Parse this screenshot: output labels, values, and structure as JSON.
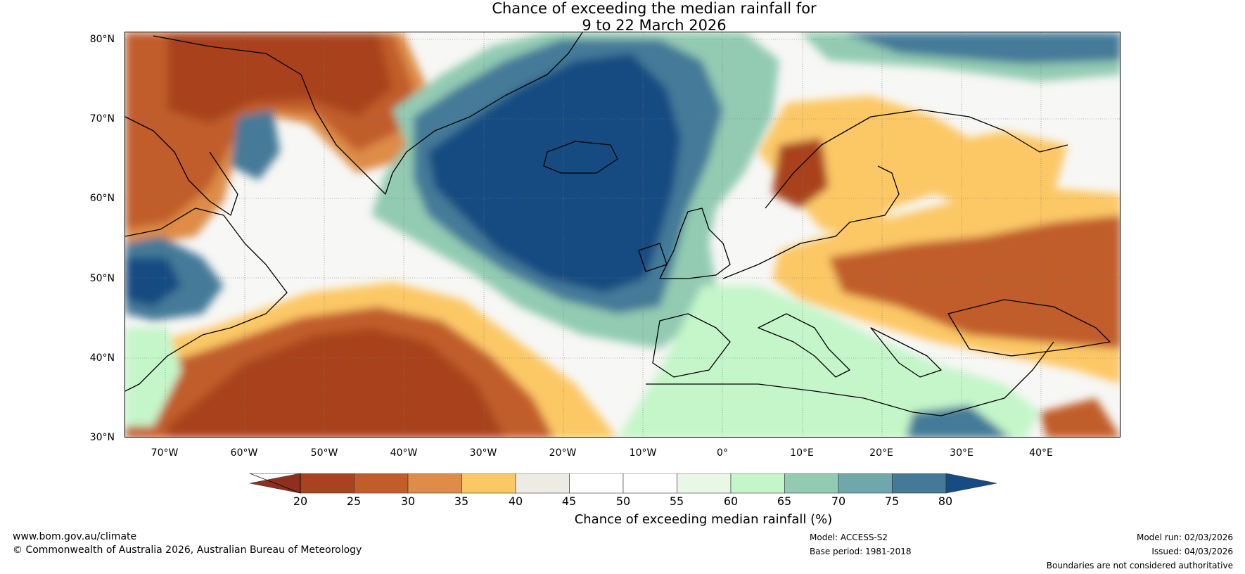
{
  "title": {
    "line1": "Chance of exceeding the median rainfall for",
    "line2": "9 to 22 March 2026"
  },
  "map": {
    "region": "North Atlantic and Europe",
    "lon_range": [
      -75,
      50
    ],
    "lat_range": [
      30,
      81
    ],
    "lat_labels": [
      "80°N",
      "70°N",
      "60°N",
      "50°N",
      "40°N",
      "30°N"
    ],
    "lon_labels": [
      "70°W",
      "60°W",
      "50°W",
      "40°W",
      "30°W",
      "20°W",
      "10°W",
      "0°",
      "10°E",
      "20°E",
      "30°E",
      "40°E"
    ]
  },
  "colorbar": {
    "ticks": [
      "20",
      "25",
      "30",
      "35",
      "40",
      "45",
      "50",
      "55",
      "60",
      "65",
      "70",
      "75",
      "80"
    ],
    "colors": [
      "#8f2f1e",
      "#a9431f",
      "#c15d2b",
      "#de8c47",
      "#fcc866",
      "#eeeae4",
      "#ffffff",
      "#ffffff",
      "#e8f7e6",
      "#c4f6c9",
      "#92cbb2",
      "#6fa8ab",
      "#447a98",
      "#164c81"
    ],
    "label": "Chance of exceeding median rainfall (%)"
  },
  "footer": {
    "url": "www.bom.gov.au/climate",
    "copyright": "© Commonwealth of Australia 2026, Australian Bureau of Meteorology",
    "model": "Model: ACCESS-S2",
    "base_period": "Base period: 1981-2018",
    "model_run": "Model run: 02/03/2026",
    "issued": "Issued: 04/03/2026",
    "disclaimer": "Boundaries are not considered authoritative"
  }
}
